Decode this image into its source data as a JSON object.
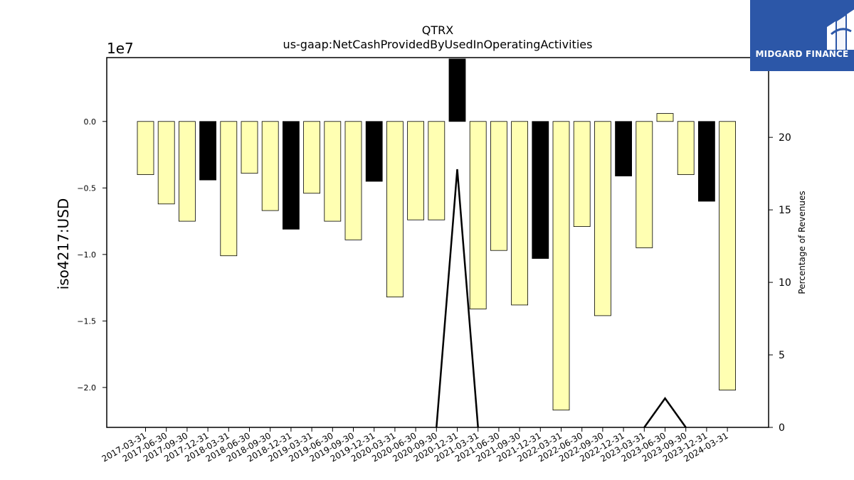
{
  "chart_data": {
    "type": "bar",
    "title": "QTRX",
    "subtitle": "us-gaap:NetCashProvidedByUsedInOperatingActivities",
    "ylabel": "iso4217:USD",
    "y_offset_label": "1e7",
    "y2label": "Percentage of Revenues",
    "ylim": [
      -2.3,
      0.48
    ],
    "y2lim": [
      0,
      25.5
    ],
    "yticks": [
      "0.0",
      "-0.5",
      "-1.0",
      "-1.5",
      "-2.0"
    ],
    "y2ticks": [
      "0",
      "5",
      "10",
      "15",
      "20"
    ],
    "grid": false,
    "categories": [
      "2017-03-31",
      "2017-06-30",
      "2017-09-30",
      "2017-12-31",
      "2018-03-31",
      "2018-06-30",
      "2018-09-30",
      "2018-12-31",
      "2019-03-31",
      "2019-06-30",
      "2019-09-30",
      "2019-12-31",
      "2020-03-31",
      "2020-06-30",
      "2020-09-30",
      "2020-12-31",
      "2021-03-31",
      "2021-06-30",
      "2021-09-30",
      "2021-12-31",
      "2022-03-31",
      "2022-06-30",
      "2022-09-30",
      "2022-12-31",
      "2023-03-31",
      "2023-06-30",
      "2023-09-30",
      "2023-12-31",
      "2024-03-31"
    ],
    "values": [
      -0.4,
      -0.62,
      -0.75,
      -0.44,
      -1.01,
      -0.39,
      -0.67,
      -0.81,
      -0.54,
      -0.75,
      -0.89,
      -0.45,
      -1.32,
      -0.74,
      -0.74,
      0.47,
      -1.41,
      -0.97,
      -1.38,
      -1.03,
      -2.17,
      -0.79,
      -1.46,
      -0.41,
      -0.95,
      0.06,
      -0.4,
      -0.6,
      -2.02
    ],
    "highlight": [
      "2017-12-31",
      "2018-12-31",
      "2019-12-31",
      "2020-12-31",
      "2021-12-31",
      "2022-12-31",
      "2023-12-31"
    ],
    "line_series": {
      "name": "Percentage of Revenues",
      "points": [
        {
          "x": "2020-09-30",
          "y": 0
        },
        {
          "x": "2020-12-31",
          "y": 17.8
        },
        {
          "x": "2021-03-31",
          "y": 0
        },
        {
          "x": "2023-03-31",
          "y": 0
        },
        {
          "x": "2023-06-30",
          "y": 2.0
        },
        {
          "x": "2023-09-30",
          "y": 0
        }
      ]
    },
    "colors": {
      "bar": "#ffffb2",
      "highlight": "#000000",
      "edge": "#000000",
      "line": "#000000"
    }
  },
  "logo": {
    "text": "MIDGARD FINANCE"
  }
}
